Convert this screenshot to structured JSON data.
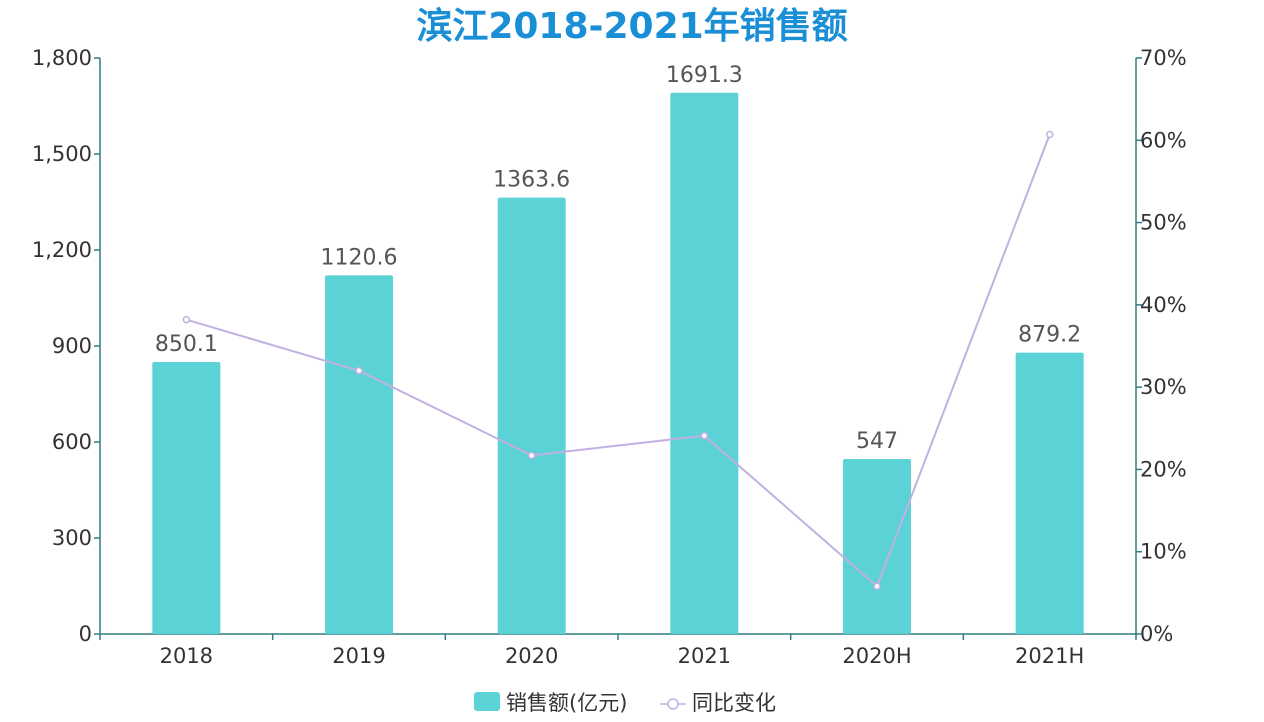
{
  "chart_data": {
    "type": "bar",
    "title": "滨江2018-2021年销售额",
    "categories": [
      "2018",
      "2019",
      "2020",
      "2021",
      "2020H",
      "2021H"
    ],
    "series": [
      {
        "name": "销售额(亿元)",
        "type": "bar",
        "axis": "left",
        "values": [
          850.1,
          1120.6,
          1363.6,
          1691.3,
          547,
          879.2
        ],
        "labels": [
          "850.1",
          "1120.6",
          "1363.6",
          "1691.3",
          "547",
          "879.2"
        ],
        "color": "#5bd3d6"
      },
      {
        "name": "同比变化",
        "type": "line",
        "axis": "right",
        "values": [
          38.2,
          32.0,
          21.7,
          24.1,
          5.8,
          60.7
        ],
        "color": "#c2b0e2"
      }
    ],
    "y_left": {
      "ylim": [
        0,
        1800
      ],
      "ticks": [
        "0",
        "300",
        "600",
        "900",
        "1,200",
        "1,500",
        "1,800"
      ]
    },
    "y_right": {
      "ylim": [
        0,
        70
      ],
      "ticks": [
        "0%",
        "10%",
        "20%",
        "30%",
        "40%",
        "50%",
        "60%",
        "70%"
      ]
    },
    "grid": false,
    "legend_position": "bottom-center",
    "colors": {
      "title": "#1a8fd6",
      "axis": "#2e7d84"
    }
  }
}
